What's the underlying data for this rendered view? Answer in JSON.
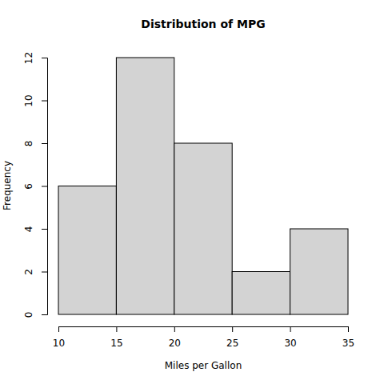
{
  "chart_data": {
    "type": "histogram",
    "title": "Distribution of MPG",
    "x_label": "Miles per Gallon",
    "y_label": "Frequency",
    "bins": [
      10,
      15,
      20,
      25,
      30,
      35
    ],
    "values": [
      6,
      12,
      8,
      2,
      4
    ],
    "color": "#d3d3d3",
    "xlim": [
      10,
      35
    ],
    "xticks": [
      10,
      15,
      20,
      25,
      30,
      35
    ],
    "ylim": [
      0,
      12
    ],
    "yticks": [
      0,
      2,
      4,
      6,
      8,
      10,
      12
    ],
    "grid": false
  }
}
